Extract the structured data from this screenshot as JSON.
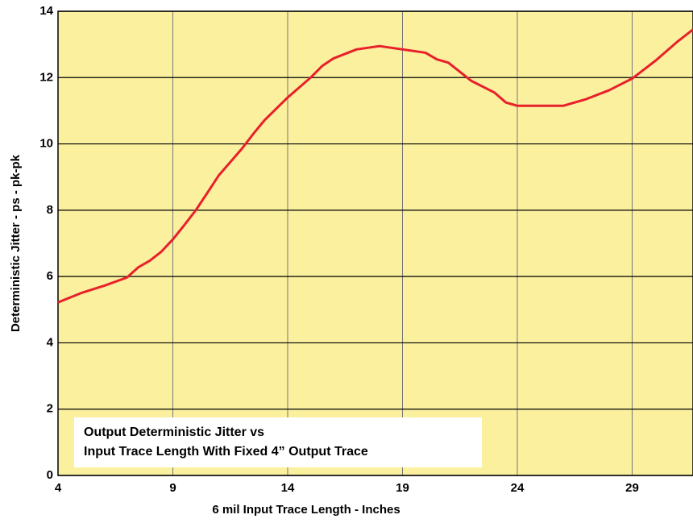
{
  "chart_data": {
    "type": "line",
    "annotation": [
      "Output Deterministic Jitter vs",
      "Input Trace Length With Fixed 4” Output Trace"
    ],
    "xlabel": "6 mil Input Trace Length - Inches",
    "ylabel": "Deterministic Jitter - ps - pk-pk",
    "x": [
      4,
      5,
      6,
      7,
      7.5,
      8,
      8.5,
      9,
      9.5,
      10,
      10.5,
      11,
      11.5,
      12,
      12.5,
      13,
      14,
      15,
      15.5,
      16,
      17,
      18,
      19,
      20,
      20.5,
      21,
      22,
      23,
      23.5,
      24,
      25,
      26,
      27,
      28,
      29,
      30,
      31,
      31.65
    ],
    "series": [
      {
        "color": "#e8202a",
        "values": [
          5.22,
          5.5,
          5.72,
          5.97,
          6.28,
          6.48,
          6.75,
          7.12,
          7.55,
          8.0,
          8.52,
          9.05,
          9.45,
          9.85,
          10.3,
          10.72,
          11.4,
          12.0,
          12.35,
          12.58,
          12.85,
          12.95,
          12.85,
          12.75,
          12.55,
          12.45,
          11.9,
          11.55,
          11.25,
          11.15,
          11.15,
          11.15,
          11.35,
          11.62,
          11.97,
          12.5,
          13.1,
          13.45
        ]
      }
    ],
    "xlim": [
      4,
      31.65
    ],
    "ylim": [
      0,
      14
    ],
    "xticks": [
      4,
      9,
      14,
      19,
      24,
      29
    ],
    "yticks": [
      0,
      2,
      4,
      6,
      8,
      10,
      12,
      14
    ],
    "grid": true,
    "background": "#faf09e"
  }
}
